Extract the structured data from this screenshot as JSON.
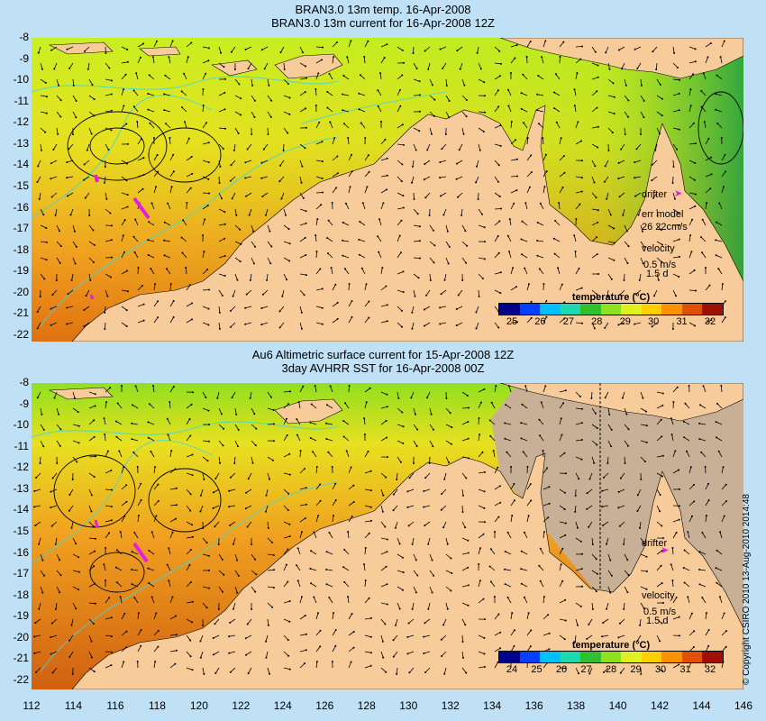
{
  "top": {
    "title_line1": "BRAN3.0 13m temp. 16-Apr-2008",
    "title_line2": "BRAN3.0 13m current for 16-Apr-2008 12Z",
    "yticks": [
      "-8",
      "-9",
      "-10",
      "-11",
      "-12",
      "-13",
      "-14",
      "-15",
      "-16",
      "-17",
      "-18",
      "-19",
      "-20",
      "-21",
      "-22"
    ],
    "drifter_label": "drifter",
    "err_model_label": "err model",
    "err_value": "26 22cm/s",
    "velocity_label": "velocity",
    "velocity_scale": "0.5 m/s",
    "velocity_days": "1.5 d",
    "legend_title": "temperature (°C)",
    "legend_ticks": [
      "25",
      "26",
      "27",
      "28",
      "29",
      "30",
      "31",
      "32"
    ]
  },
  "bottom": {
    "title_line1": "Au6 Altimetric surface current for 15-Apr-2008 12Z",
    "title_line2": "3day AVHRR SST for 16-Apr-2008 00Z",
    "yticks": [
      "-8",
      "-9",
      "-10",
      "-11",
      "-12",
      "-13",
      "-14",
      "-15",
      "-16",
      "-17",
      "-18",
      "-19",
      "-20",
      "-21",
      "-22"
    ],
    "drifter_label": "drifter",
    "velocity_label": "velocity",
    "velocity_scale": "0.5 m/s",
    "velocity_days": "1.5 d",
    "legend_title": "temperature (°C)",
    "legend_ticks": [
      "24",
      "25",
      "26",
      "27",
      "28",
      "29",
      "30",
      "31",
      "32"
    ]
  },
  "xticks": [
    "112",
    "114",
    "116",
    "118",
    "120",
    "122",
    "124",
    "126",
    "128",
    "130",
    "132",
    "134",
    "136",
    "138",
    "140",
    "142",
    "144",
    "146"
  ],
  "copyright": "© Copyright CSIRO 2010   13-Aug-2010 2014:48",
  "colors": {
    "land": "#f8cb9a",
    "ocean_warm": "#f0a020",
    "ocean_mid": "#e8e020",
    "ocean_cool": "#30c030",
    "cloud": "#c8b096",
    "contour": "#40d8d8",
    "drifter": "#e020e0"
  },
  "colorbar": [
    "#00008b",
    "#0040ff",
    "#00c0ff",
    "#20d8b0",
    "#30c030",
    "#90e020",
    "#e0f020",
    "#ffd000",
    "#ff9000",
    "#e05000",
    "#a01000"
  ]
}
